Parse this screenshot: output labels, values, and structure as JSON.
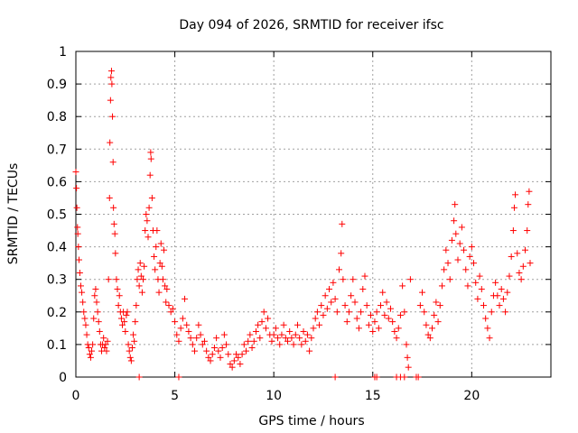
{
  "chart_data": {
    "type": "scatter",
    "title": "Day 094 of 2026, SRMTID for receiver ifsc",
    "xlabel": "GPS time / hours",
    "ylabel": "SRMTID / TECUs",
    "xlim": [
      0,
      24
    ],
    "ylim": [
      0,
      1
    ],
    "xticks": [
      0,
      5,
      10,
      15,
      20
    ],
    "xtick_labels": [
      "0",
      "5",
      "10",
      "15",
      "20"
    ],
    "yticks": [
      0,
      0.1,
      0.2,
      0.3,
      0.4,
      0.5,
      0.6,
      0.7,
      0.8,
      0.9,
      1
    ],
    "ytick_labels": [
      "0",
      "0.1",
      "0.2",
      "0.3",
      "0.4",
      "0.5",
      "0.6",
      "0.7",
      "0.8",
      "0.9",
      "1"
    ],
    "grid": true,
    "marker": "plus",
    "color": "#ff0000",
    "series": [
      {
        "name": "SRMTID",
        "points": [
          [
            0.0,
            0.63
          ],
          [
            0.03,
            0.58
          ],
          [
            0.05,
            0.52
          ],
          [
            0.08,
            0.46
          ],
          [
            0.1,
            0.44
          ],
          [
            0.13,
            0.4
          ],
          [
            0.16,
            0.36
          ],
          [
            0.2,
            0.32
          ],
          [
            0.25,
            0.28
          ],
          [
            0.3,
            0.26
          ],
          [
            0.35,
            0.23
          ],
          [
            0.4,
            0.2
          ],
          [
            0.45,
            0.18
          ],
          [
            0.5,
            0.16
          ],
          [
            0.55,
            0.13
          ],
          [
            0.6,
            0.1
          ],
          [
            0.65,
            0.09
          ],
          [
            0.7,
            0.07
          ],
          [
            0.75,
            0.06
          ],
          [
            0.8,
            0.08
          ],
          [
            0.85,
            0.1
          ],
          [
            0.9,
            0.18
          ],
          [
            0.95,
            0.25
          ],
          [
            1.0,
            0.27
          ],
          [
            1.05,
            0.23
          ],
          [
            1.1,
            0.2
          ],
          [
            1.15,
            0.17
          ],
          [
            1.2,
            0.14
          ],
          [
            1.25,
            0.1
          ],
          [
            1.3,
            0.08
          ],
          [
            1.35,
            0.1
          ],
          [
            1.4,
            0.12
          ],
          [
            1.45,
            0.09
          ],
          [
            1.5,
            0.1
          ],
          [
            1.55,
            0.08
          ],
          [
            1.6,
            0.11
          ],
          [
            1.65,
            0.3
          ],
          [
            1.7,
            0.55
          ],
          [
            1.72,
            0.72
          ],
          [
            1.75,
            0.85
          ],
          [
            1.77,
            0.92
          ],
          [
            1.8,
            0.94
          ],
          [
            1.82,
            0.9
          ],
          [
            1.85,
            0.8
          ],
          [
            1.88,
            0.66
          ],
          [
            1.9,
            0.52
          ],
          [
            1.93,
            0.47
          ],
          [
            1.97,
            0.44
          ],
          [
            2.0,
            0.38
          ],
          [
            2.05,
            0.3
          ],
          [
            2.1,
            0.27
          ],
          [
            2.15,
            0.22
          ],
          [
            2.2,
            0.25
          ],
          [
            2.25,
            0.2
          ],
          [
            2.3,
            0.18
          ],
          [
            2.35,
            0.16
          ],
          [
            2.4,
            0.2
          ],
          [
            2.45,
            0.17
          ],
          [
            2.5,
            0.14
          ],
          [
            2.55,
            0.19
          ],
          [
            2.6,
            0.2
          ],
          [
            2.65,
            0.1
          ],
          [
            2.7,
            0.08
          ],
          [
            2.75,
            0.06
          ],
          [
            2.8,
            0.05
          ],
          [
            2.85,
            0.09
          ],
          [
            2.9,
            0.13
          ],
          [
            2.95,
            0.11
          ],
          [
            3.0,
            0.17
          ],
          [
            3.05,
            0.22
          ],
          [
            3.1,
            0.3
          ],
          [
            3.15,
            0.33
          ],
          [
            3.2,
            0.28
          ],
          [
            3.25,
            0.35
          ],
          [
            3.3,
            0.31
          ],
          [
            3.35,
            0.26
          ],
          [
            3.4,
            0.3
          ],
          [
            3.45,
            0.34
          ],
          [
            3.5,
            0.45
          ],
          [
            3.55,
            0.5
          ],
          [
            3.6,
            0.48
          ],
          [
            3.65,
            0.43
          ],
          [
            3.7,
            0.52
          ],
          [
            3.75,
            0.62
          ],
          [
            3.78,
            0.69
          ],
          [
            3.8,
            0.67
          ],
          [
            3.85,
            0.55
          ],
          [
            3.9,
            0.45
          ],
          [
            3.95,
            0.37
          ],
          [
            4.0,
            0.33
          ],
          [
            4.05,
            0.4
          ],
          [
            4.1,
            0.45
          ],
          [
            4.15,
            0.3
          ],
          [
            4.2,
            0.26
          ],
          [
            4.25,
            0.35
          ],
          [
            4.3,
            0.41
          ],
          [
            4.35,
            0.34
          ],
          [
            4.4,
            0.3
          ],
          [
            4.45,
            0.39
          ],
          [
            4.5,
            0.28
          ],
          [
            4.55,
            0.23
          ],
          [
            4.6,
            0.27
          ],
          [
            4.7,
            0.22
          ],
          [
            4.8,
            0.2
          ],
          [
            4.9,
            0.21
          ],
          [
            5.0,
            0.17
          ],
          [
            5.1,
            0.13
          ],
          [
            5.2,
            0.11
          ],
          [
            5.3,
            0.15
          ],
          [
            5.4,
            0.18
          ],
          [
            5.5,
            0.24
          ],
          [
            5.6,
            0.16
          ],
          [
            5.7,
            0.14
          ],
          [
            5.8,
            0.12
          ],
          [
            5.9,
            0.1
          ],
          [
            6.0,
            0.08
          ],
          [
            6.1,
            0.12
          ],
          [
            6.2,
            0.16
          ],
          [
            6.3,
            0.13
          ],
          [
            6.4,
            0.1
          ],
          [
            6.5,
            0.11
          ],
          [
            6.6,
            0.08
          ],
          [
            6.7,
            0.06
          ],
          [
            6.8,
            0.05
          ],
          [
            6.9,
            0.07
          ],
          [
            7.0,
            0.09
          ],
          [
            7.1,
            0.12
          ],
          [
            7.2,
            0.08
          ],
          [
            7.3,
            0.06
          ],
          [
            7.4,
            0.09
          ],
          [
            7.5,
            0.13
          ],
          [
            7.6,
            0.1
          ],
          [
            7.7,
            0.07
          ],
          [
            7.8,
            0.04
          ],
          [
            7.9,
            0.03
          ],
          [
            8.0,
            0.05
          ],
          [
            8.1,
            0.07
          ],
          [
            8.2,
            0.06
          ],
          [
            8.3,
            0.04
          ],
          [
            8.4,
            0.07
          ],
          [
            8.5,
            0.1
          ],
          [
            8.6,
            0.08
          ],
          [
            8.7,
            0.11
          ],
          [
            8.8,
            0.13
          ],
          [
            8.9,
            0.09
          ],
          [
            9.0,
            0.11
          ],
          [
            9.1,
            0.14
          ],
          [
            9.2,
            0.16
          ],
          [
            9.3,
            0.12
          ],
          [
            9.4,
            0.17
          ],
          [
            9.5,
            0.2
          ],
          [
            9.6,
            0.15
          ],
          [
            9.7,
            0.18
          ],
          [
            9.8,
            0.13
          ],
          [
            9.9,
            0.11
          ],
          [
            10.0,
            0.13
          ],
          [
            10.1,
            0.15
          ],
          [
            10.2,
            0.12
          ],
          [
            10.3,
            0.1
          ],
          [
            10.4,
            0.13
          ],
          [
            10.5,
            0.16
          ],
          [
            10.6,
            0.12
          ],
          [
            10.7,
            0.11
          ],
          [
            10.8,
            0.14
          ],
          [
            10.9,
            0.12
          ],
          [
            11.0,
            0.1
          ],
          [
            11.1,
            0.13
          ],
          [
            11.2,
            0.16
          ],
          [
            11.3,
            0.12
          ],
          [
            11.4,
            0.1
          ],
          [
            11.5,
            0.14
          ],
          [
            11.6,
            0.11
          ],
          [
            11.7,
            0.13
          ],
          [
            11.8,
            0.08
          ],
          [
            11.9,
            0.12
          ],
          [
            12.0,
            0.15
          ],
          [
            12.1,
            0.18
          ],
          [
            12.2,
            0.2
          ],
          [
            12.3,
            0.16
          ],
          [
            12.4,
            0.22
          ],
          [
            12.5,
            0.19
          ],
          [
            12.6,
            0.25
          ],
          [
            12.7,
            0.21
          ],
          [
            12.8,
            0.27
          ],
          [
            12.9,
            0.23
          ],
          [
            13.0,
            0.29
          ],
          [
            13.1,
            0.24
          ],
          [
            13.2,
            0.2
          ],
          [
            13.3,
            0.33
          ],
          [
            13.4,
            0.38
          ],
          [
            13.45,
            0.47
          ],
          [
            13.5,
            0.3
          ],
          [
            13.6,
            0.22
          ],
          [
            13.7,
            0.17
          ],
          [
            13.8,
            0.2
          ],
          [
            13.9,
            0.25
          ],
          [
            14.0,
            0.3
          ],
          [
            14.1,
            0.23
          ],
          [
            14.2,
            0.18
          ],
          [
            14.3,
            0.15
          ],
          [
            14.4,
            0.2
          ],
          [
            14.5,
            0.27
          ],
          [
            14.6,
            0.31
          ],
          [
            14.7,
            0.22
          ],
          [
            14.8,
            0.16
          ],
          [
            14.9,
            0.19
          ],
          [
            15.0,
            0.14
          ],
          [
            15.1,
            0.17
          ],
          [
            15.2,
            0.2
          ],
          [
            15.3,
            0.15
          ],
          [
            15.4,
            0.22
          ],
          [
            15.5,
            0.26
          ],
          [
            15.6,
            0.19
          ],
          [
            15.7,
            0.23
          ],
          [
            15.8,
            0.18
          ],
          [
            15.9,
            0.21
          ],
          [
            16.0,
            0.17
          ],
          [
            16.1,
            0.14
          ],
          [
            16.2,
            0.12
          ],
          [
            16.3,
            0.15
          ],
          [
            16.4,
            0.19
          ],
          [
            16.5,
            0.28
          ],
          [
            16.6,
            0.2
          ],
          [
            16.7,
            0.1
          ],
          [
            16.75,
            0.06
          ],
          [
            16.8,
            0.03
          ],
          [
            16.9,
            0.3
          ],
          [
            17.4,
            0.22
          ],
          [
            17.5,
            0.26
          ],
          [
            17.6,
            0.2
          ],
          [
            17.7,
            0.16
          ],
          [
            17.8,
            0.13
          ],
          [
            17.9,
            0.12
          ],
          [
            18.0,
            0.15
          ],
          [
            18.1,
            0.19
          ],
          [
            18.2,
            0.23
          ],
          [
            18.3,
            0.17
          ],
          [
            18.4,
            0.22
          ],
          [
            18.5,
            0.28
          ],
          [
            18.6,
            0.33
          ],
          [
            18.7,
            0.39
          ],
          [
            18.8,
            0.35
          ],
          [
            18.9,
            0.3
          ],
          [
            19.0,
            0.42
          ],
          [
            19.1,
            0.48
          ],
          [
            19.15,
            0.53
          ],
          [
            19.2,
            0.44
          ],
          [
            19.3,
            0.36
          ],
          [
            19.4,
            0.41
          ],
          [
            19.5,
            0.46
          ],
          [
            19.6,
            0.39
          ],
          [
            19.7,
            0.33
          ],
          [
            19.8,
            0.28
          ],
          [
            19.9,
            0.37
          ],
          [
            20.0,
            0.4
          ],
          [
            20.1,
            0.35
          ],
          [
            20.2,
            0.29
          ],
          [
            20.3,
            0.24
          ],
          [
            20.4,
            0.31
          ],
          [
            20.5,
            0.27
          ],
          [
            20.6,
            0.22
          ],
          [
            20.7,
            0.18
          ],
          [
            20.8,
            0.15
          ],
          [
            20.9,
            0.12
          ],
          [
            21.0,
            0.2
          ],
          [
            21.1,
            0.25
          ],
          [
            21.2,
            0.29
          ],
          [
            21.3,
            0.25
          ],
          [
            21.4,
            0.22
          ],
          [
            21.5,
            0.27
          ],
          [
            21.6,
            0.24
          ],
          [
            21.7,
            0.2
          ],
          [
            21.8,
            0.26
          ],
          [
            21.9,
            0.31
          ],
          [
            22.0,
            0.37
          ],
          [
            22.1,
            0.45
          ],
          [
            22.15,
            0.52
          ],
          [
            22.2,
            0.56
          ],
          [
            22.3,
            0.38
          ],
          [
            22.4,
            0.32
          ],
          [
            22.5,
            0.3
          ],
          [
            22.6,
            0.34
          ],
          [
            22.7,
            0.39
          ],
          [
            22.8,
            0.45
          ],
          [
            22.85,
            0.53
          ],
          [
            22.9,
            0.57
          ],
          [
            22.95,
            0.35
          ],
          [
            3.2,
            0.0
          ],
          [
            5.2,
            0.0
          ],
          [
            13.1,
            0.0
          ],
          [
            15.1,
            0.0
          ],
          [
            15.2,
            0.0
          ],
          [
            16.2,
            0.0
          ],
          [
            16.4,
            0.0
          ],
          [
            16.6,
            0.0
          ],
          [
            17.2,
            0.0
          ],
          [
            17.3,
            0.0
          ]
        ]
      }
    ]
  }
}
